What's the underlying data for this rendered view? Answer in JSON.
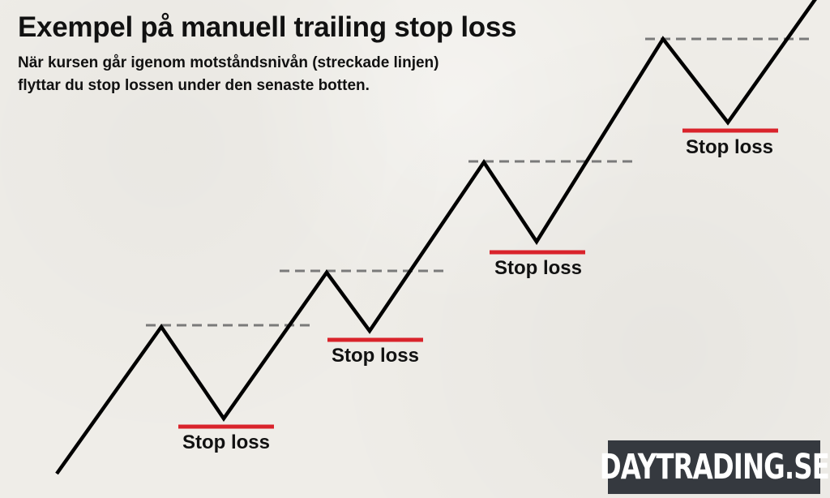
{
  "title": "Exempel på manuell trailing stop loss",
  "subtitle_line1": "När kursen går igenom motståndsnivån (streckade linjen)",
  "subtitle_line2": "flyttar du stop lossen under den senaste botten.",
  "stop_labels": [
    "Stop loss",
    "Stop loss",
    "Stop loss",
    "Stop loss"
  ],
  "logo_text": "DAYTRADING.SE",
  "colors": {
    "background": "#efede8",
    "price_line": "#000000",
    "resistance_dashed": "#7a7a7a",
    "stop_loss_line": "#d9232b",
    "logo_bg": "#35393f"
  }
}
